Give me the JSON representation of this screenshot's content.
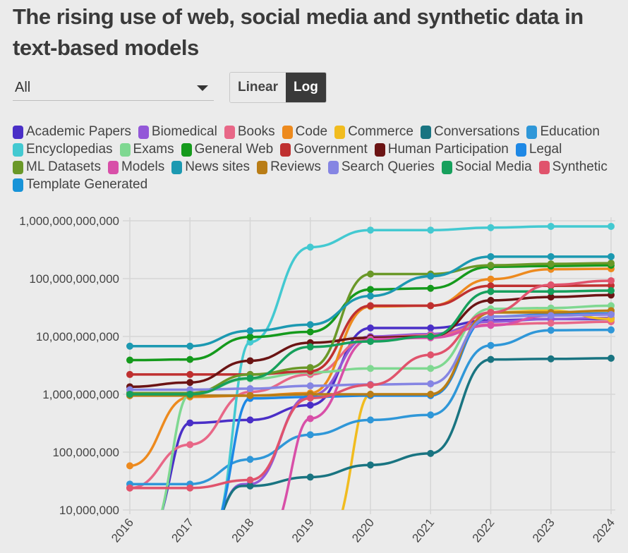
{
  "title": "The rising use of web, social media and synthetic data in text-based models",
  "filter": {
    "selected": "All"
  },
  "scale_toggle": {
    "linear_label": "Linear",
    "log_label": "Log",
    "active": "Log"
  },
  "chart_data": {
    "type": "line",
    "title": "The rising use of web, social media and synthetic data in text-based models",
    "yscale": "log",
    "ylim": [
      10000000,
      1000000000000
    ],
    "y_tick_labels": [
      "1,000,000,000,000",
      "100,000,000,000",
      "10,000,000,000",
      "1,000,000,000",
      "100,000,000",
      "10,000,000"
    ],
    "y_tick_values": [
      1000000000000,
      100000000000,
      10000000000,
      1000000000,
      100000000,
      10000000
    ],
    "x": [
      "2016",
      "2017",
      "2018",
      "2019",
      "2020",
      "2021",
      "2022",
      "2023",
      "2024"
    ],
    "grid": true,
    "legend_position": "top",
    "series": [
      {
        "name": "Academic Papers",
        "color": "#4a2fc7",
        "values": [
          null,
          320000000,
          360000000,
          650000000,
          14000000000,
          14000000000,
          19000000000,
          20000000000,
          20000000000
        ]
      },
      {
        "name": "Biomedical",
        "color": "#9358d8",
        "values": [
          null,
          null,
          28000000,
          950000000,
          10000000000,
          11000000000,
          18000000000,
          20000000000,
          21000000000
        ]
      },
      {
        "name": "Books",
        "color": "#e86787",
        "values": [
          24000000,
          135000000,
          1100000000,
          2200000000,
          9500000000,
          10500000000,
          16000000000,
          17000000000,
          18000000000
        ]
      },
      {
        "name": "Code",
        "color": "#ed8a1e",
        "values": [
          58000000,
          900000000,
          950000000,
          1050000000,
          33000000000,
          34000000000,
          98000000000,
          145000000000,
          148000000000
        ]
      },
      {
        "name": "Commerce",
        "color": "#f1bc1f",
        "values": [
          null,
          null,
          null,
          null,
          1000000000,
          1000000000,
          26000000000,
          28000000000,
          20000000000
        ]
      },
      {
        "name": "Conversations",
        "color": "#197481",
        "values": [
          null,
          null,
          26000000,
          37000000,
          60000000,
          95000000,
          4000000000,
          4100000000,
          4200000000
        ]
      },
      {
        "name": "Education",
        "color": "#2f97d8",
        "values": [
          28000000,
          28000000,
          75000000,
          200000000,
          360000000,
          440000000,
          7000000000,
          12800000000,
          13000000000
        ]
      },
      {
        "name": "Encyclopedias",
        "color": "#43c9d1",
        "values": [
          null,
          null,
          8000000000,
          350000000000,
          690000000000,
          690000000000,
          760000000000,
          800000000000,
          800000000000
        ]
      },
      {
        "name": "Exams",
        "color": "#7fd891",
        "values": [
          null,
          1000000000,
          1850000000,
          2400000000,
          2800000000,
          2800000000,
          30000000000,
          31000000000,
          34000000000
        ]
      },
      {
        "name": "General Web",
        "color": "#159a1c",
        "values": [
          3900000000,
          4000000000,
          9800000000,
          12000000000,
          65000000000,
          68000000000,
          160000000000,
          165000000000,
          170000000000
        ]
      },
      {
        "name": "Government",
        "color": "#bf3030",
        "values": [
          2200000000,
          2200000000,
          2200000000,
          2500000000,
          34000000000,
          34000000000,
          75000000000,
          75000000000,
          76000000000
        ]
      },
      {
        "name": "Human Participation",
        "color": "#6b1414",
        "values": [
          1350000000,
          1600000000,
          3800000000,
          7800000000,
          9500000000,
          10000000000,
          42000000000,
          48000000000,
          52000000000
        ]
      },
      {
        "name": "Legal",
        "color": "#1e88e5",
        "values": [
          null,
          null,
          850000000,
          900000000,
          950000000,
          950000000,
          22000000000,
          24000000000,
          25000000000
        ]
      },
      {
        "name": "ML Datasets",
        "color": "#6a9828",
        "values": [
          1050000000,
          1050000000,
          2200000000,
          2900000000,
          120000000000,
          120000000000,
          170000000000,
          180000000000,
          185000000000
        ]
      },
      {
        "name": "Models",
        "color": "#d84fa8",
        "values": [
          null,
          null,
          null,
          380000000,
          9000000000,
          9500000000,
          15500000000,
          23000000000,
          24000000000
        ]
      },
      {
        "name": "News sites",
        "color": "#1c99b1",
        "values": [
          6800000000,
          6800000000,
          12500000000,
          16000000000,
          50000000000,
          110000000000,
          240000000000,
          240000000000,
          240000000000
        ]
      },
      {
        "name": "Reviews",
        "color": "#b97d16",
        "values": [
          950000000,
          950000000,
          950000000,
          1000000000,
          1000000000,
          1000000000,
          26000000000,
          26000000000,
          28000000000
        ]
      },
      {
        "name": "Search Queries",
        "color": "#8585e3",
        "values": [
          1200000000,
          1200000000,
          1250000000,
          1400000000,
          1480000000,
          1520000000,
          22000000000,
          23000000000,
          24000000000
        ]
      },
      {
        "name": "Social Media",
        "color": "#16a05c",
        "values": [
          1000000000,
          1000000000,
          1900000000,
          6600000000,
          8200000000,
          10000000000,
          60000000000,
          60000000000,
          62000000000
        ]
      },
      {
        "name": "Synthetic",
        "color": "#e0536c",
        "values": [
          24000000,
          24000000,
          33000000,
          860000000,
          1450000000,
          4800000000,
          26000000000,
          78000000000,
          92000000000
        ]
      },
      {
        "name": "Template Generated",
        "color": "#1793d8",
        "values": [
          null,
          null,
          null,
          null,
          null,
          null,
          null,
          null,
          null
        ]
      }
    ]
  }
}
